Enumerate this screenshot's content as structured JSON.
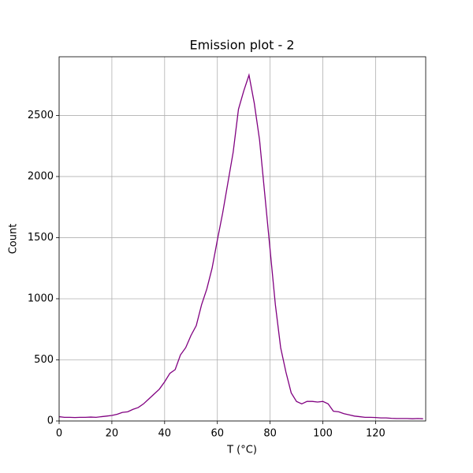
{
  "chart_data": {
    "type": "line",
    "title": "Emission plot - 2",
    "xlabel": "T (°C)",
    "ylabel": "Count",
    "x": [
      0,
      2,
      4,
      6,
      8,
      10,
      12,
      14,
      16,
      18,
      20,
      22,
      24,
      26,
      28,
      30,
      32,
      34,
      36,
      38,
      40,
      42,
      44,
      46,
      48,
      50,
      52,
      54,
      56,
      58,
      60,
      62,
      64,
      66,
      68,
      70,
      72,
      74,
      76,
      78,
      80,
      82,
      84,
      86,
      88,
      90,
      92,
      94,
      96,
      98,
      100,
      102,
      104,
      106,
      108,
      110,
      112,
      114,
      116,
      118,
      120,
      122,
      124,
      126,
      128,
      130,
      132,
      134,
      136,
      138
    ],
    "values": [
      35,
      30,
      30,
      28,
      30,
      30,
      32,
      30,
      35,
      40,
      45,
      55,
      70,
      75,
      95,
      110,
      140,
      180,
      220,
      260,
      320,
      390,
      420,
      540,
      600,
      700,
      780,
      950,
      1080,
      1250,
      1480,
      1700,
      1950,
      2200,
      2550,
      2700,
      2830,
      2600,
      2300,
      1850,
      1400,
      950,
      600,
      400,
      230,
      160,
      140,
      160,
      160,
      155,
      160,
      140,
      80,
      75,
      60,
      50,
      40,
      35,
      30,
      30,
      28,
      25,
      25,
      22,
      20,
      20,
      20,
      18,
      20,
      18
    ],
    "color": "#800080",
    "xlim": [
      0,
      139
    ],
    "ylim": [
      0,
      2980
    ],
    "xticks": [
      0,
      20,
      40,
      60,
      80,
      100,
      120
    ],
    "yticks": [
      0,
      500,
      1000,
      1500,
      2000,
      2500
    ],
    "grid": true
  }
}
